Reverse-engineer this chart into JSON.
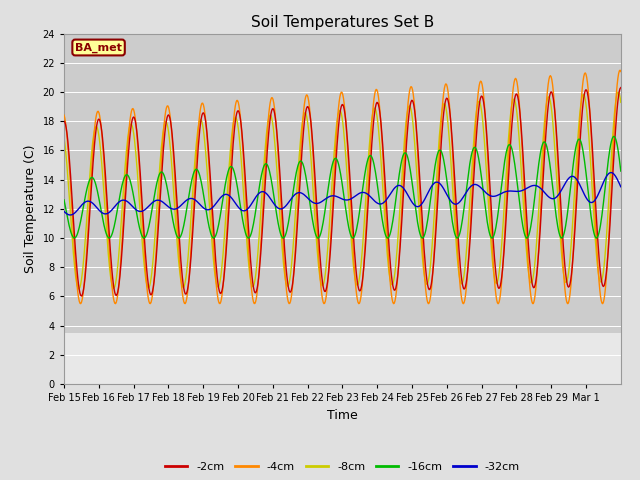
{
  "title": "Soil Temperatures Set B",
  "xlabel": "Time",
  "ylabel": "Soil Temperature (C)",
  "ylim": [
    0,
    24
  ],
  "background_color": "#e0e0e0",
  "plot_bg_color": "#cccccc",
  "lower_bg_color": "#e8e8e8",
  "lower_bg_threshold": 3.5,
  "label_box_text": "BA_met",
  "label_box_bg": "#ffff99",
  "label_box_border": "#8B0000",
  "label_box_text_color": "#8B0000",
  "legend_labels": [
    "-2cm",
    "-4cm",
    "-8cm",
    "-16cm",
    "-32cm"
  ],
  "line_colors": [
    "#cc0000",
    "#ff8800",
    "#cccc00",
    "#00bb00",
    "#0000cc"
  ],
  "xtick_labels": [
    "Feb 15",
    "Feb 16",
    "Feb 17",
    "Feb 18",
    "Feb 19",
    "Feb 20",
    "Feb 21",
    "Feb 22",
    "Feb 23",
    "Feb 24",
    "Feb 25",
    "Feb 26",
    "Feb 27",
    "Feb 28",
    "Feb 29",
    "Mar 1"
  ],
  "n_days": 16,
  "points_per_day": 48
}
